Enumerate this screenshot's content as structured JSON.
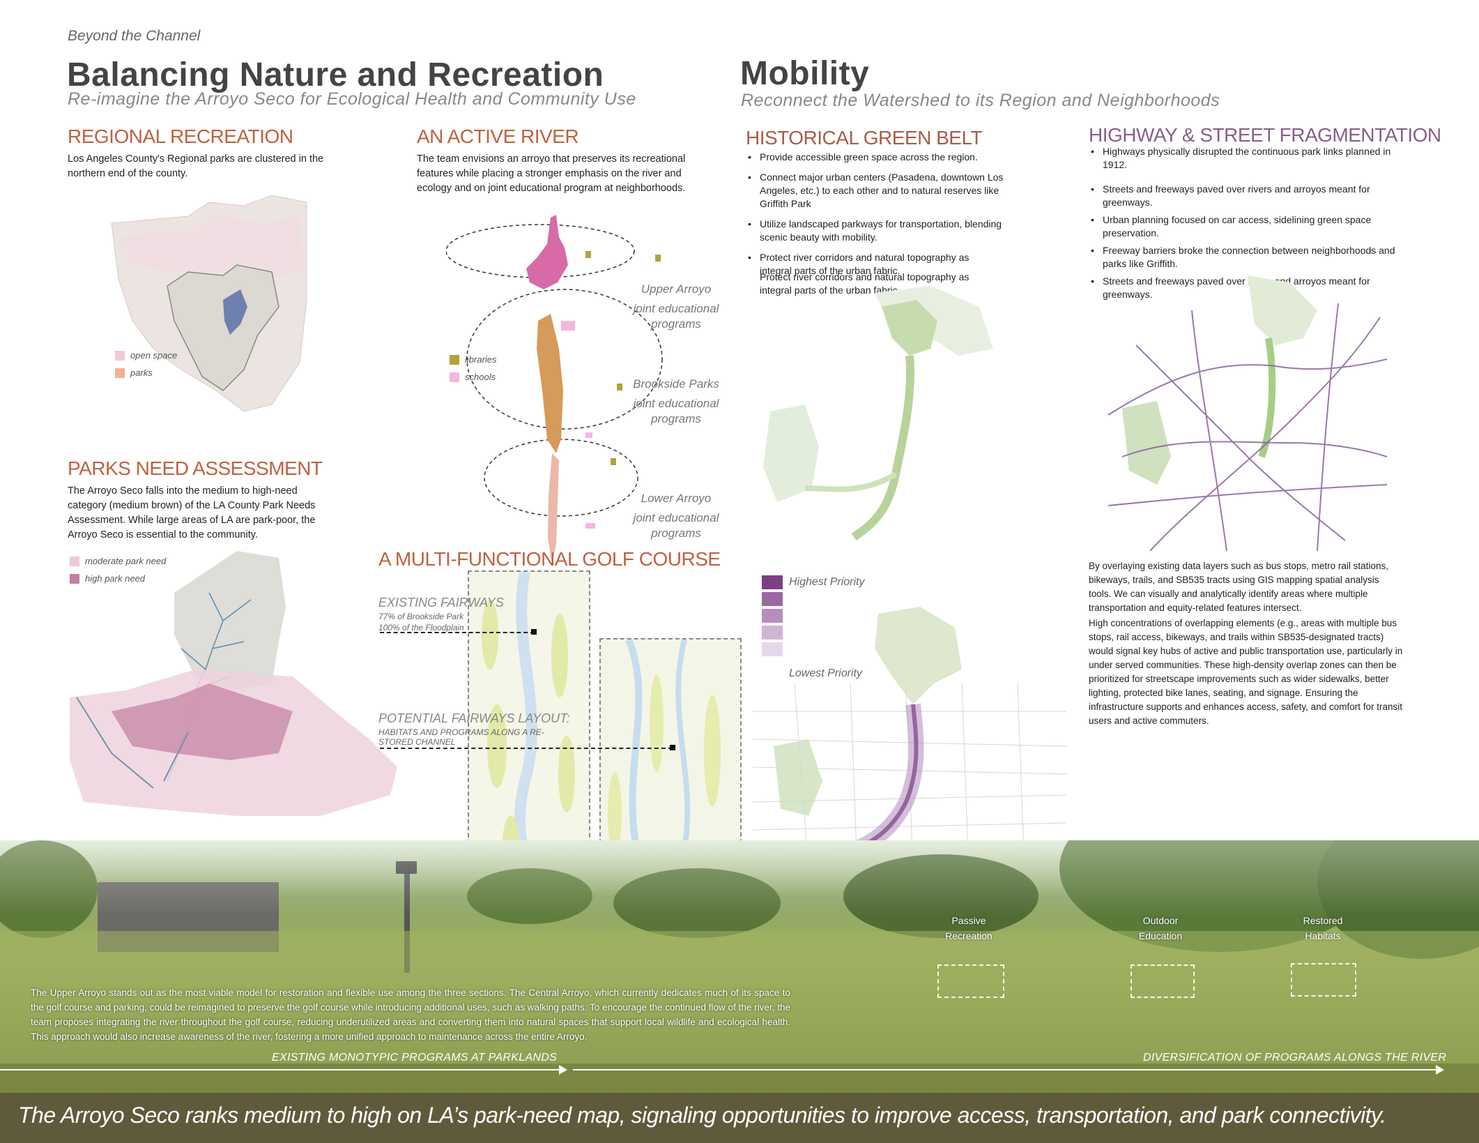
{
  "header": {
    "kicker": "Beyond the Channel",
    "left_title": "Balancing Nature and Recreation",
    "left_subtitle": "Re-imagine the Arroyo Seco for Ecological Health and Community Use",
    "right_title": "Mobility",
    "right_subtitle": "Reconnect the Watershed to its Region and Neighborhoods"
  },
  "regional_recreation": {
    "heading": "REGIONAL RECREATION",
    "body": "Los Angeles County's Regional parks are clustered in the northern end of the county.",
    "legend": [
      {
        "label": "open space",
        "color": "#f2c9d4"
      },
      {
        "label": "parks",
        "color": "#f0b48e"
      }
    ]
  },
  "active_river": {
    "heading": "AN ACTIVE RIVER",
    "body": "The team envisions an arroyo that preserves its recreational features while placing a stronger emphasis on the river and ecology and on joint educational program at neighborhoods.",
    "legend": [
      {
        "label": "libraries",
        "color": "#b5a03a"
      },
      {
        "label": "schools",
        "color": "#f3b8dc"
      }
    ],
    "zones": [
      {
        "name": "Upper Arroyo",
        "note": "joint educational programs"
      },
      {
        "name": "Brookside Parks",
        "note": "joint educational programs"
      },
      {
        "name": "Lower Arroyo",
        "note": "joint educational programs"
      }
    ]
  },
  "parks_need": {
    "heading": "PARKS NEED ASSESSMENT",
    "body": "The Arroyo Seco falls into the medium to high-need category (medium brown) of the LA County Park Needs Assessment. While large areas of LA are park-poor, the Arroyo Seco is essential to the community.",
    "legend": [
      {
        "label": "moderate park need",
        "color": "#ecc9d8"
      },
      {
        "label": "high park need",
        "color": "#c27e9e"
      }
    ]
  },
  "golf": {
    "heading": "A MULTI-FUNCTIONAL GOLF COURSE",
    "existing_title": "EXISTING FAIRWAYS",
    "existing_line1": "77% of Brookside Park",
    "existing_line2": "100% of the Floodplain",
    "potential_title": "POTENTIAL FAIRWAYS LAYOUT:",
    "potential_line1": "HABITATS AND PROGRAMS ALONG A RE-",
    "potential_line2": "STORED CHANNEL"
  },
  "green_belt": {
    "heading": "HISTORICAL GREEN BELT",
    "bullets": [
      "Provide accessible green space across the region.",
      "Connect major urban centers (Pasadena, downtown Los Angeles, etc.) to each other and to natural reserves like Griffith Park",
      "Utilize landscaped parkways for transportation, blending scenic beauty with mobility.",
      "Protect river corridors and natural topography as integral parts of the urban fabric."
    ],
    "extra": "Protect river corridors and natural topography as integral parts of the urban fabric.",
    "priority_high": "Highest Priority",
    "priority_low": "Lowest Priority",
    "priority_colors": [
      "#7b3f86",
      "#9a68a2",
      "#b58ebd",
      "#cfb5d4",
      "#e6d8ea"
    ]
  },
  "fragmentation": {
    "heading": "HIGHWAY & STREET FRAGMENTATION",
    "bullets": [
      "Highways physically disrupted the continuous park links planned in 1912.",
      "Streets and freeways paved over rivers and arroyos meant for greenways.",
      "Urban planning focused on car access, sidelining green space preservation.",
      "Freeway barriers broke the connection between neighborhoods and parks like Griffith.",
      "Streets and freeways paved over rivers and arroyos meant for greenways."
    ],
    "para1": "By overlaying existing data layers such as bus stops, metro rail stations, bikeways, trails, and SB535 tracts using GIS mapping spatial analysis tools. We can visually and analytically identify areas where multiple transportation and equity-related features intersect.",
    "para2": "High concentrations of overlapping elements (e.g., areas with multiple bus stops, rail access, bikeways, and trails within SB535-designated tracts) would signal key hubs of active and public transportation use, particularly in under served communities. These high-density overlap zones can then be prioritized for streetscape improvements such as wider sidewalks, better lighting, protected bike lanes, seating, and signage. Ensuring the infrastructure supports and enhances access, safety, and comfort for transit users and active commuters."
  },
  "photo": {
    "caption": "The Upper Arroyo stands out as the most viable model for restoration and flexible use among the three sections. The Central Arroyo, which currently dedicates much of its space to the golf course and parking, could be reimagined to preserve the golf course while introducing additional uses, such as walking paths. To encourage the continued flow of the river, the team proposes integrating the river throughout the golf course, reducing underutilized areas and converting them into natural spaces that support local wildlife and ecological health. This approach would also increase awareness of the river, fostering a more unified approach to maintenance across the entire Arroyo.",
    "label_passive_1": "Passive",
    "label_passive_2": "Recreation",
    "label_outdoor_1": "Outdoor",
    "label_outdoor_2": "Education",
    "label_habitat_1": "Restored",
    "label_habitat_2": "Habitats",
    "arrow_left": "EXISTING MONOTYPIC PROGRAMS AT PARKLANDS",
    "arrow_right": "DIVERSIFICATION OF PROGRAMS ALONGS THE RIVER"
  },
  "footer": {
    "text": "The Arroyo Seco ranks medium to high on LA’s park-need map, signaling opportunities to improve access, transportation, and park connectivity."
  }
}
